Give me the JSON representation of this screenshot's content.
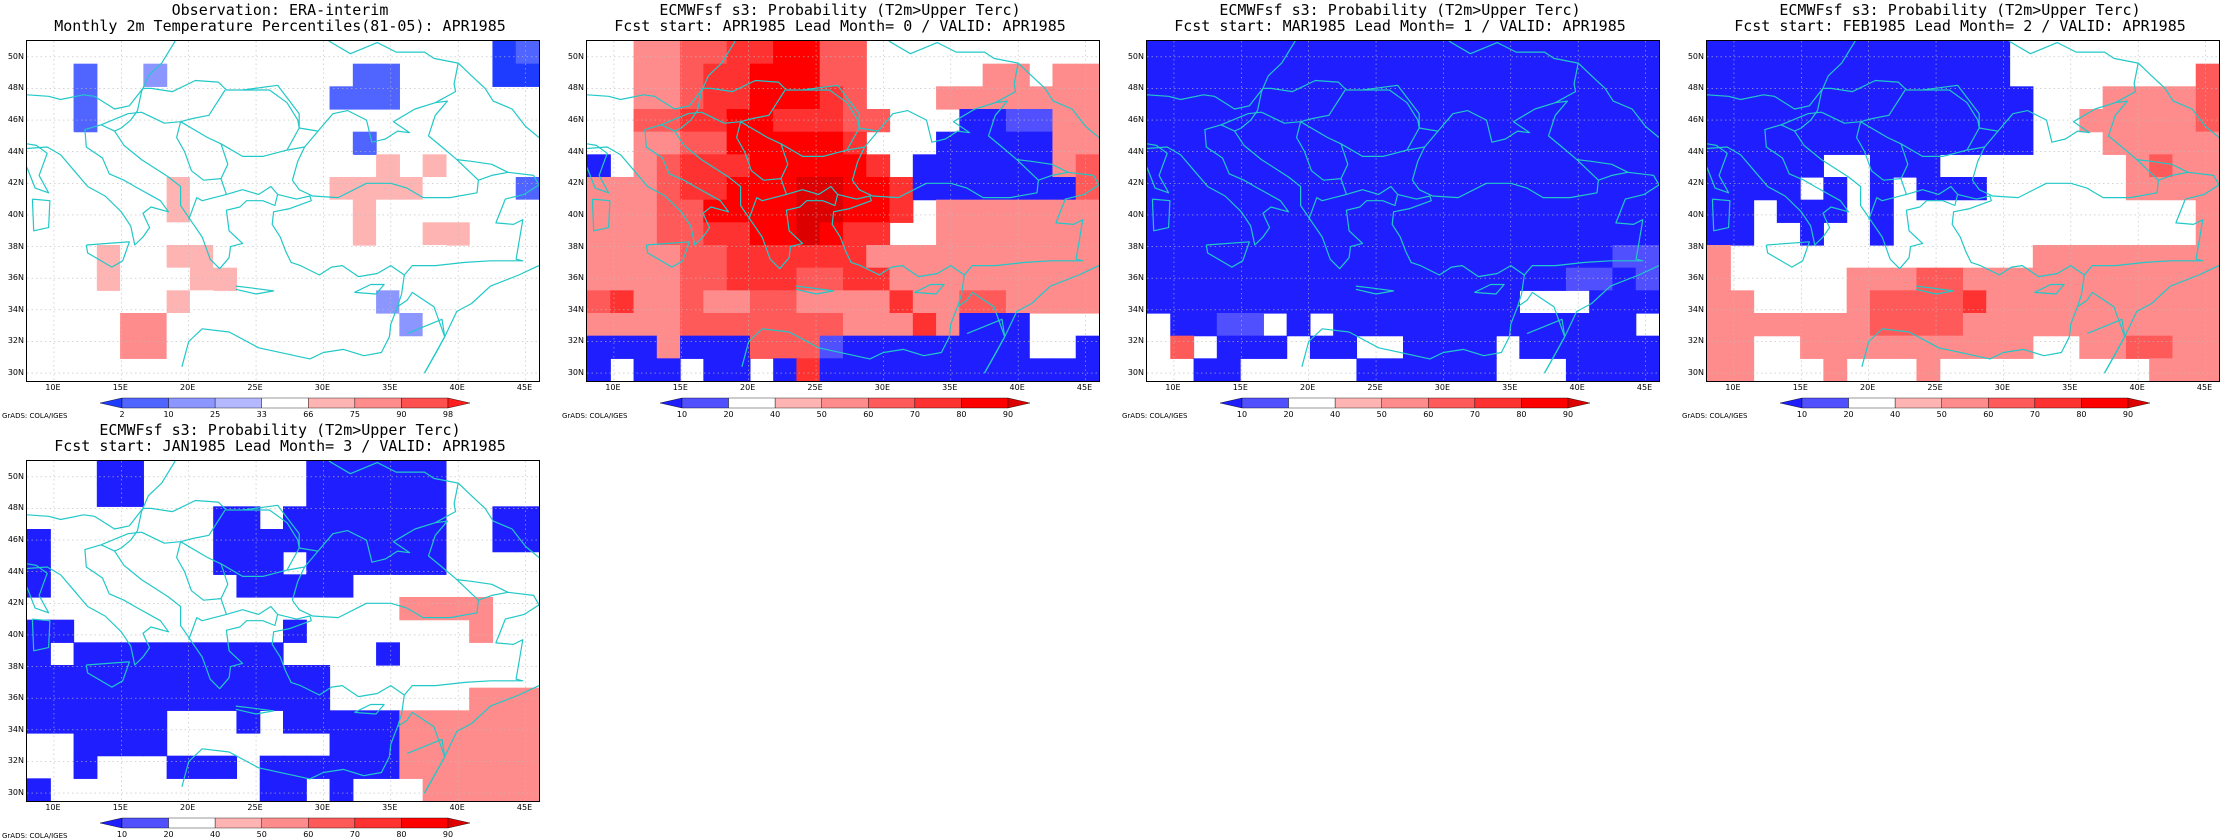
{
  "x_ticks": [
    "10E",
    "15E",
    "20E",
    "25E",
    "30E",
    "35E",
    "40E",
    "45E"
  ],
  "y_ticks": [
    "30N",
    "32N",
    "34N",
    "36N",
    "38N",
    "40N",
    "42N",
    "44N",
    "46N",
    "48N",
    "50N"
  ],
  "credit": "GrADS: COLA/IGES",
  "panels": [
    {
      "title1": "Observation: ERA-interim",
      "title2": "Monthly 2m Temperature Percentiles(81-05): APR1985",
      "legend_labels": [
        "2",
        "10",
        "25",
        "33",
        "66",
        "75",
        "90",
        "98"
      ],
      "legend_colors": [
        "#1e3cff",
        "#5064ff",
        "#8c96ff",
        "#b4b9ff",
        "#ffffff",
        "#ffb4b4",
        "#ff8c8c",
        "#ff5050",
        "#ff1e1e"
      ],
      "grid": [
        "....................ab",
        "..b..c........bb....aa",
        "..b..........bbb......",
        "..b.....eeee..........",
        "ee...eee.ee...b.....ee",
        "ee...eee...eee.f.f....",
        "e...eefeeeeeeffffeeeeb",
        "e.....fe.eeeeefeeeeeee",
        "e.....eee.e.eefe.ff...",
        "...feeffee.......e....",
        "...feeeff.....e.......",
        "..e..efe.......ce.....",
        "..e.ggee........ce....",
        "....ggee.........e....",
        "......................"
      ]
    },
    {
      "title1": "ECMWFsf s3: Probability (T2m>Upper Terc)",
      "title2": "Fcst start: APR1985  Lead Month= 0 / VALID: APR1985",
      "legend_labels": [
        "10",
        "20",
        "40",
        "50",
        "60",
        "70",
        "80",
        "90"
      ],
      "legend_colors": [
        "#1e1eff",
        "#5050ff",
        "#ffffff",
        "#ffb4b4",
        "#ff8c8c",
        "#ff5a5a",
        "#ff3232",
        "#ff0000",
        "#dc0000"
      ],
      "grid": [
        "..eeffgghhff..........",
        "..eefgghhhff.....ee.ee",
        "..eefgghhhgf...eeeeeee",
        "..ffgghhgggff...aabbee",
        "..eeffhhhhhg...aaaaaee",
        "a.efggghhhhhg.aaaaaaef",
        "eeefgghhhiihhgaaaaaaaf",
        "eeeffhhhhiihhg.eeeeeee",
        "eeeffgghhihgg..eeeeeee",
        "eeeeffggggggeeeeeeeeee",
        "eeeeffgggffggeeeeeeeee",
        "fgeefeeffeeeegeeffeeee",
        "eeeefffffffeeegeaaa...",
        "aaaeaaafffbaaaaaaaa..a",
        "a.aa.aa.agaaaaaaaaaaaa"
      ]
    },
    {
      "title1": "ECMWFsf s3: Probability (T2m>Upper Terc)",
      "title2": "Fcst start: MAR1985  Lead Month= 1 / VALID: APR1985",
      "legend_labels": [
        "10",
        "20",
        "40",
        "50",
        "60",
        "70",
        "80",
        "90"
      ],
      "legend_colors": [
        "#1e1eff",
        "#5050ff",
        "#ffffff",
        "#ffb4b4",
        "#ff8c8c",
        "#ff5a5a",
        "#ff3232",
        "#ff0000",
        "#dc0000"
      ],
      "grid": [
        "aaaaaaaaaaaaaaaaaaaaaa",
        "aaaaaaaaaaaaaaaaaaaaaa",
        "aaaaaaaaaaaaaaaaaaaaaa",
        "aaaaaaaaaaaaaaaaaaaaaa",
        "aaaaaaaaaaaaaaaaaaaaaa",
        "aaaaaaaaaaaaaaaaaaaaaa",
        "aaaaaaaaaaaaaaaaaaaaaa",
        "aaaaaaaaaaaaaaaaaaaaaa",
        "aaaaaaaaaaaaaaaaaaaaaa",
        "aaaaaaaaaaaaaaaaaaaabb",
        "aaaaaaaaaaaaaaaaaabbab",
        "aaaaaaaaaaaaaaaa...aaa",
        ".aabb.a.aaaaaaaaaaaaa.",
        ".f.aaa.aa..aaaa.aaaaaa",
        "..aa.....aaaaaa...aaaa"
      ]
    },
    {
      "title1": "ECMWFsf s3: Probability (T2m>Upper Terc)",
      "title2": "Fcst start: FEB1985  Lead Month= 2 / VALID: APR1985",
      "legend_labels": [
        "10",
        "20",
        "40",
        "50",
        "60",
        "70",
        "80",
        "90"
      ],
      "legend_colors": [
        "#1e1eff",
        "#5050ff",
        "#ffffff",
        "#ffb4b4",
        "#ff8c8c",
        "#ff5a5a",
        "#ff3232",
        "#ff0000",
        "#dc0000"
      ],
      "grid": [
        "aaaaaaaaaaaaa.........",
        "aaaaaaaaaaaaa........f",
        "aaaaaaaaaaaaaa...eeeef",
        "aaaaaaaaaaaaaa..eeeeef",
        "aaaaaaaaaaaaaa...eeeee",
        "aaaaa..aaa........efee",
        "aaaa.a.a.aaa......eeee",
        "aa.aaa.a.............e",
        "aa..a..a.............e",
        "e.............eeeeeeee",
        "e.....eeeffeeeeeeeeeee",
        "ee....effffgeeeeeeeeee",
        "eeeeeeeffffeeeeeeeeeee",
        "ee..eeeeeeeeee..eeffee",
        "ee...e...e.........eee"
      ]
    },
    {
      "title1": "ECMWFsf s3: Probability (T2m>Upper Terc)",
      "title2": "Fcst start: JAN1985  Lead Month= 3 / VALID: APR1985",
      "legend_labels": [
        "10",
        "20",
        "40",
        "50",
        "60",
        "70",
        "80",
        "90"
      ],
      "legend_colors": [
        "#1e1eff",
        "#5050ff",
        "#ffffff",
        "#ffb4b4",
        "#ff8c8c",
        "#ff5a5a",
        "#ff3232",
        "#ff0000",
        "#dc0000"
      ],
      "grid": [
        "...aa.......aaaaaa....",
        "...aa.......aaaaaa....",
        "........aa.aaaaaaa..aa",
        "a.......aaaaaaaaaa..aa",
        "a.......aaa.aaaaaa....",
        "a........aaaaa........",
        "................eeee..",
        "aa.........a.......e..",
        "a.aaaaaaaaa....a......",
        "aaaaaaaaaaaaa.........",
        "aaaaaaaaaaaaa......eee",
        "aaaaaa...a.aaaaaeeeeee",
        "..aaaa.......aaaeeeeee",
        "..a...aaa.aaaaaaeeeeee",
        "a.........aa.a...eeeee"
      ]
    }
  ]
}
